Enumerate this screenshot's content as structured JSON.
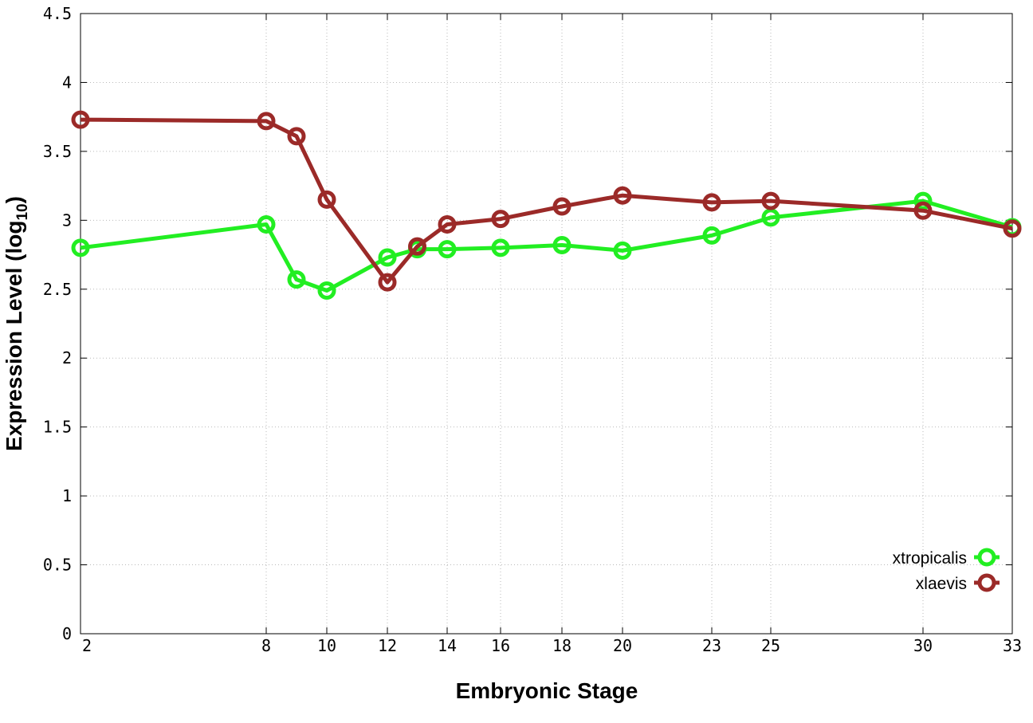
{
  "chart_data": {
    "type": "line",
    "title": "",
    "xlabel": "Embryonic Stage",
    "ylabel": "Expression Level (log",
    "ylabel_subscript": "10",
    "ylabel_suffix": ")",
    "x_ticks": [
      2,
      8,
      10,
      12,
      14,
      16,
      18,
      20,
      23,
      25,
      30,
      33
    ],
    "y_ticks": [
      "0",
      "0.5",
      "1",
      "1.5",
      "2",
      "2.5",
      "3",
      "3.5",
      "4",
      "4.5"
    ],
    "ylim": [
      0,
      4.5
    ],
    "xlim": [
      2,
      33
    ],
    "grid": true,
    "legend_position": "bottom-right",
    "series": [
      {
        "name": "xtropicalis",
        "color": "#22ee22",
        "points": [
          [
            2,
            2.8
          ],
          [
            8,
            2.97
          ],
          [
            9,
            2.57
          ],
          [
            10,
            2.49
          ],
          [
            12,
            2.73
          ],
          [
            13,
            2.79
          ],
          [
            14,
            2.79
          ],
          [
            16,
            2.8
          ],
          [
            18,
            2.82
          ],
          [
            20,
            2.78
          ],
          [
            23,
            2.89
          ],
          [
            25,
            3.02
          ],
          [
            30,
            3.14
          ],
          [
            33,
            2.95
          ]
        ]
      },
      {
        "name": "xlaevis",
        "color": "#9b2a28",
        "points": [
          [
            2,
            3.73
          ],
          [
            8,
            3.72
          ],
          [
            9,
            3.61
          ],
          [
            10,
            3.15
          ],
          [
            12,
            2.55
          ],
          [
            13,
            2.81
          ],
          [
            14,
            2.97
          ],
          [
            16,
            3.01
          ],
          [
            18,
            3.1
          ],
          [
            20,
            3.18
          ],
          [
            23,
            3.13
          ],
          [
            25,
            3.14
          ],
          [
            30,
            3.07
          ],
          [
            33,
            2.94
          ]
        ]
      }
    ]
  }
}
